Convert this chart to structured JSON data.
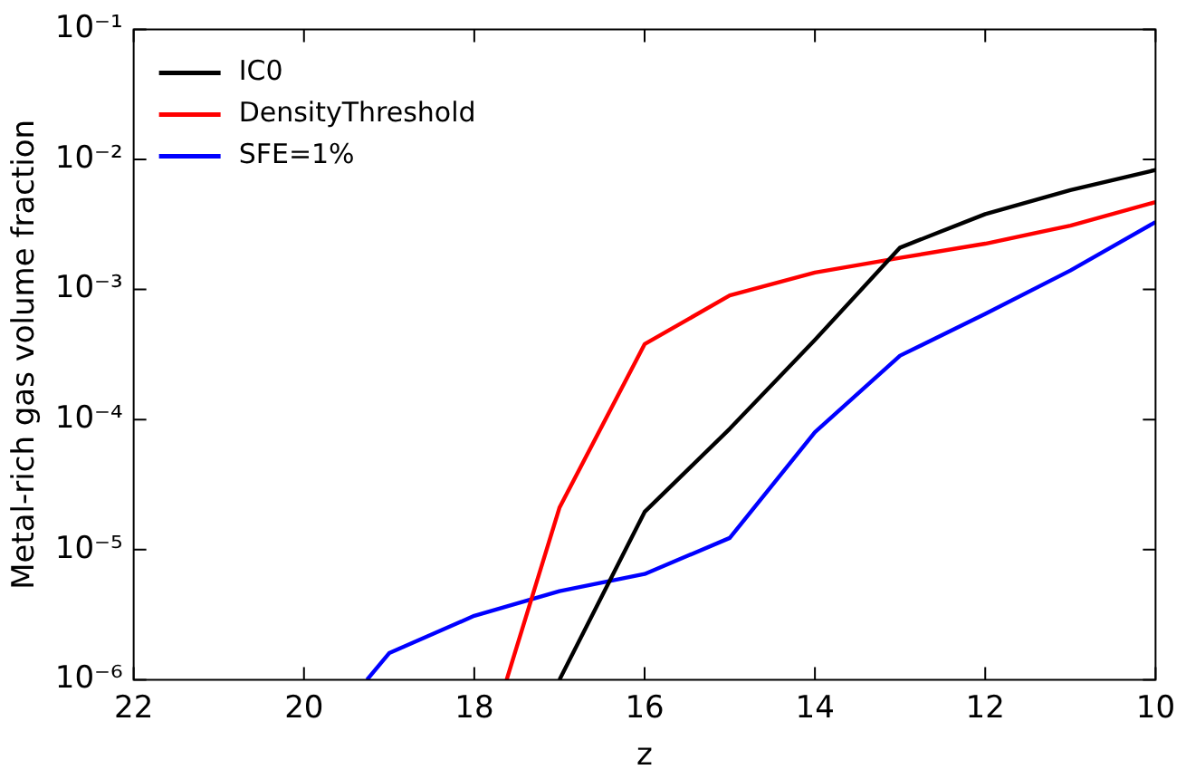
{
  "chart_data": {
    "type": "line",
    "xlabel": "z",
    "ylabel": "Metal-rich gas volume fraction",
    "log": "y",
    "xlim": [
      22,
      10
    ],
    "xticks": [
      22,
      20,
      18,
      16,
      14,
      12,
      10
    ],
    "ylim": [
      1e-06,
      0.1
    ],
    "yticks": [
      {
        "value": 1e-06,
        "label": "10⁻⁶"
      },
      {
        "value": 1e-05,
        "label": "10⁻⁵"
      },
      {
        "value": 0.0001,
        "label": "10⁻⁴"
      },
      {
        "value": 0.001,
        "label": "10⁻³"
      },
      {
        "value": 0.01,
        "label": "10⁻²"
      },
      {
        "value": 0.1,
        "label": "10⁻¹"
      }
    ],
    "grid": false,
    "legend": "top left",
    "marker": "none",
    "line_style": "solid",
    "series": [
      {
        "name": "IC0",
        "color": "#000000",
        "x": [
          17,
          16,
          15,
          14,
          13,
          12,
          11,
          10
        ],
        "values": [
          1e-06,
          1.95e-05,
          8.5e-05,
          0.00041,
          0.0021,
          0.0038,
          0.0058,
          0.0083
        ]
      },
      {
        "name": "DensityThreshold",
        "color": "#ff0000",
        "x": [
          17.62,
          17,
          16,
          15,
          14,
          13,
          12,
          11,
          10
        ],
        "values": [
          1e-06,
          2.1e-05,
          0.00038,
          0.0009,
          0.00135,
          0.00175,
          0.00225,
          0.0031,
          0.0047
        ]
      },
      {
        "name": "SFE=1%",
        "color": "#0000ff",
        "x": [
          19.26,
          19,
          18,
          17,
          16,
          15,
          14,
          13,
          12,
          11,
          10
        ],
        "values": [
          1e-06,
          1.6e-06,
          3.1e-06,
          4.8e-06,
          6.5e-06,
          1.23e-05,
          8e-05,
          0.00031,
          0.00065,
          0.0014,
          0.0033
        ]
      }
    ]
  }
}
